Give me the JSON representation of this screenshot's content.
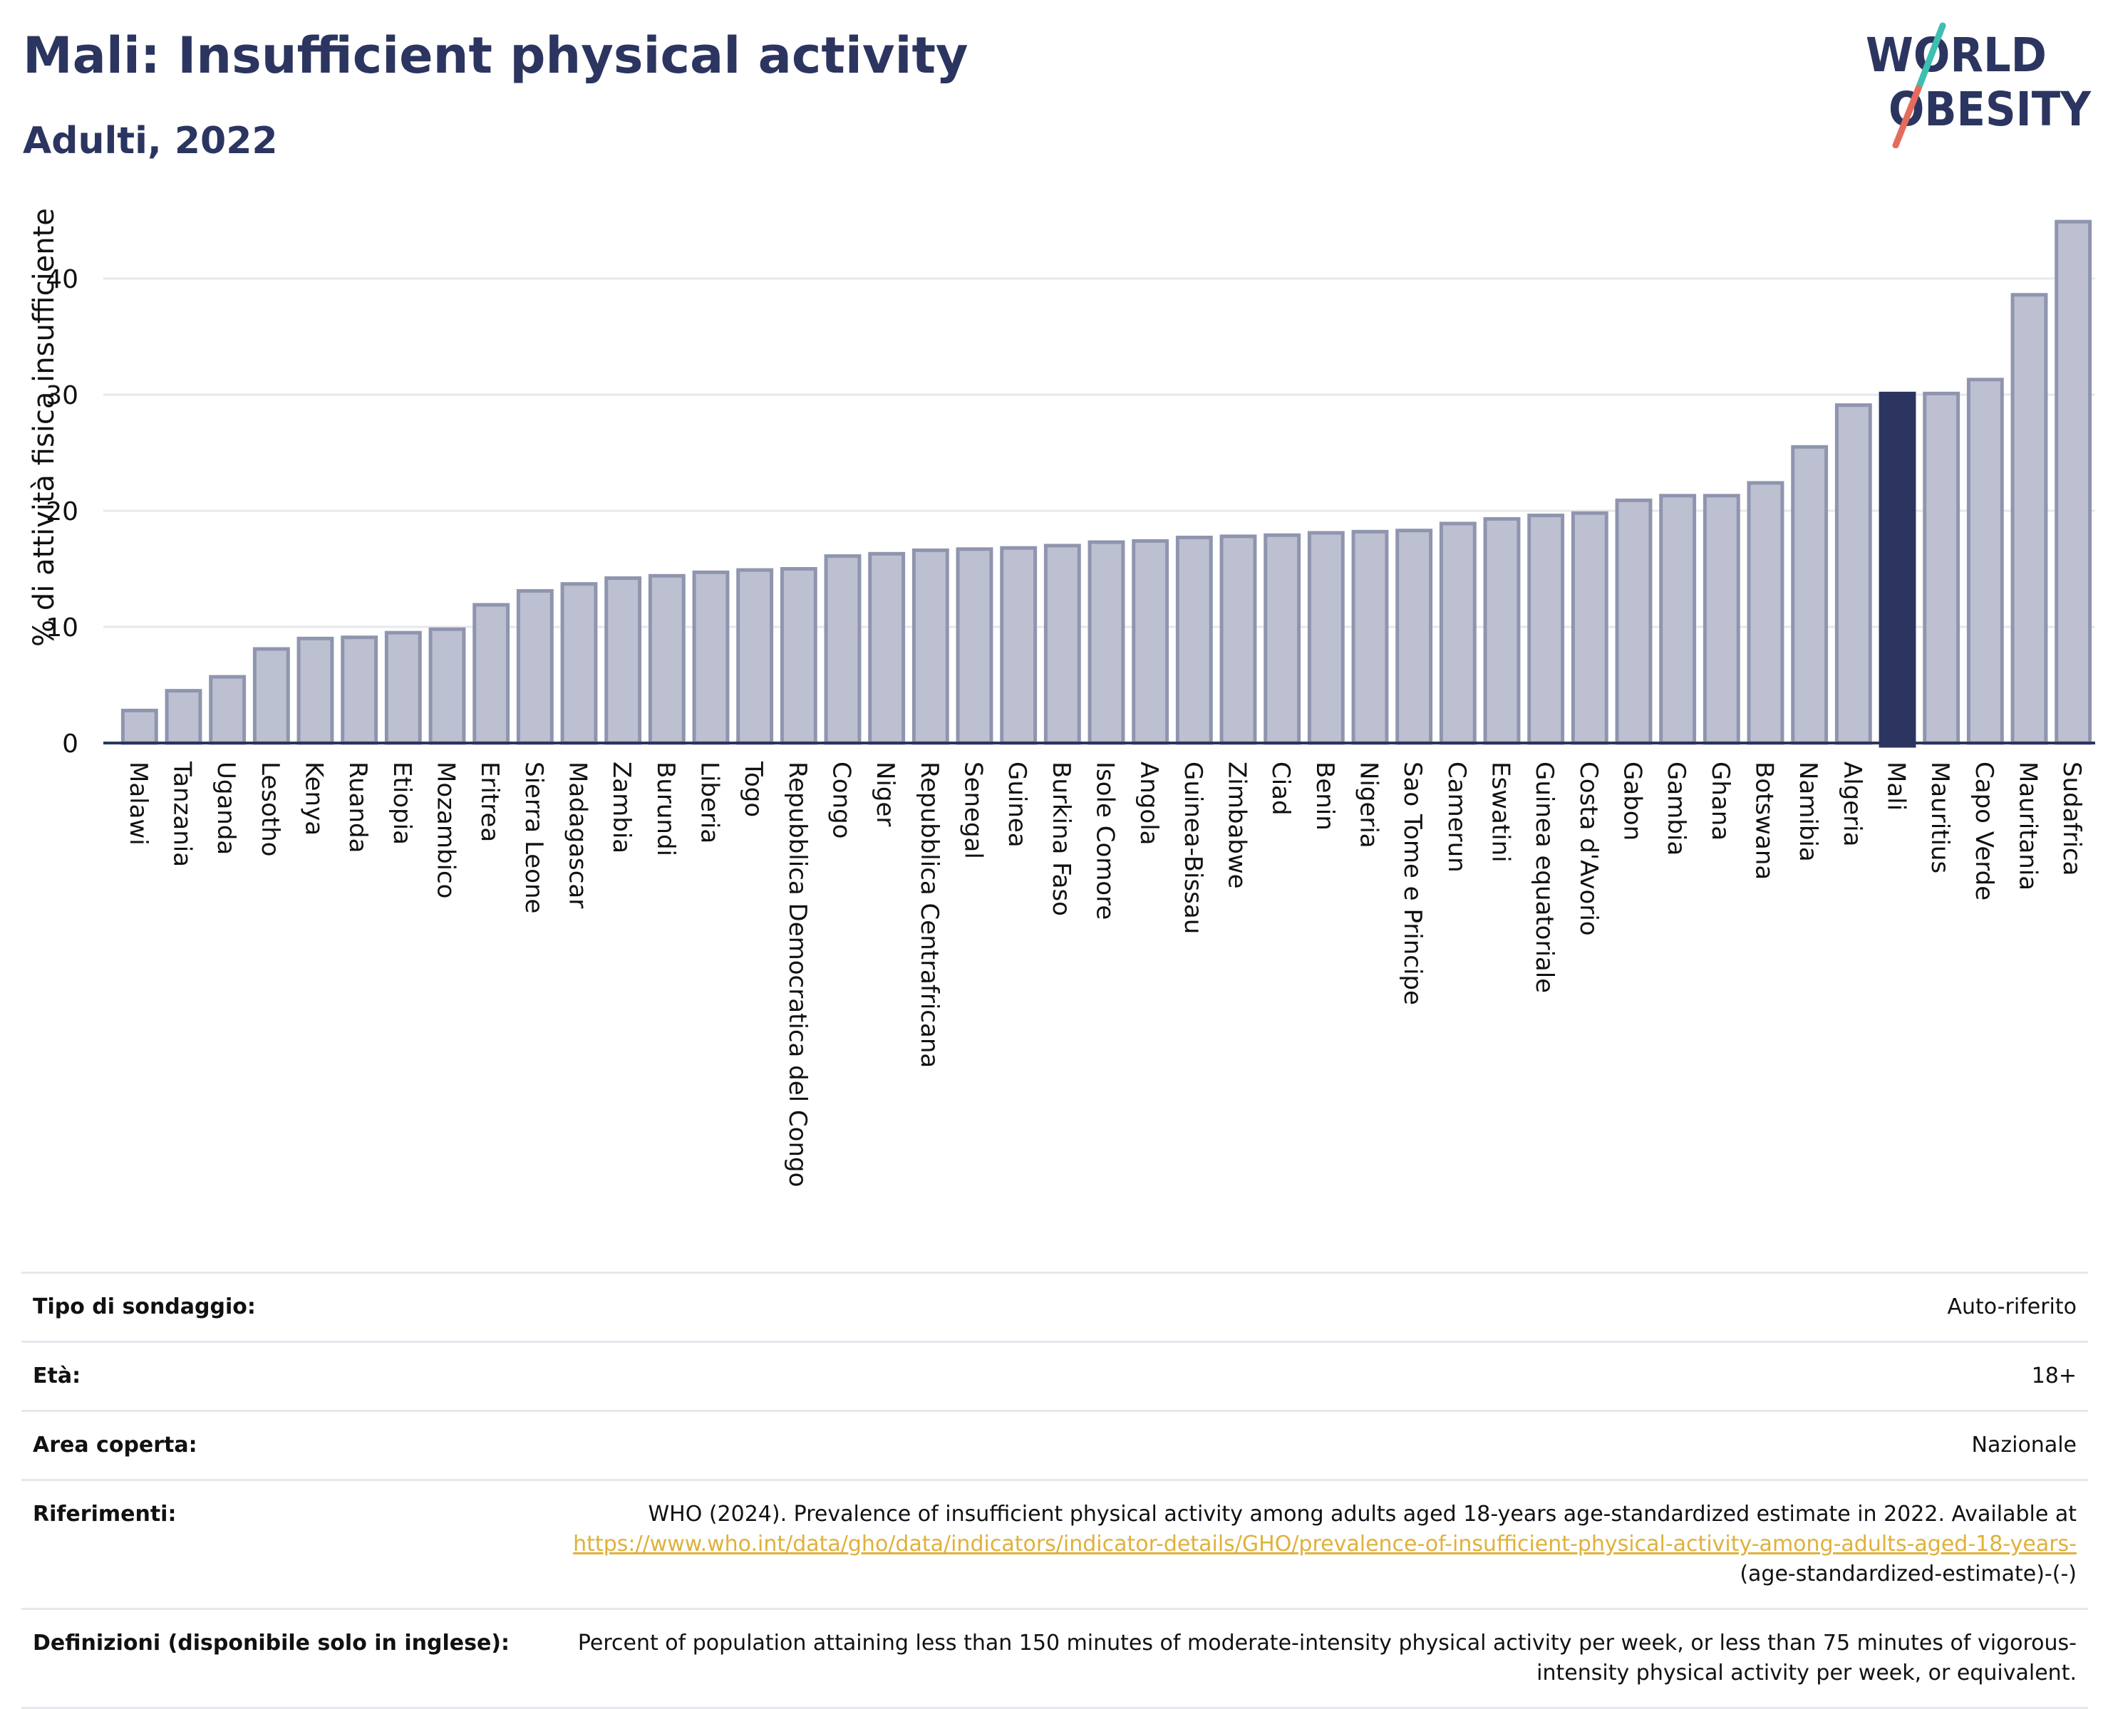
{
  "header": {
    "title": "Mali: Insufficient physical activity",
    "subtitle": "Adulti, 2022"
  },
  "logo": {
    "line1": "WORLD",
    "line2": "OBESITY",
    "colors": {
      "text": "#2b3560",
      "slash_teal": "#3fbfb2",
      "slash_coral": "#e56b5d"
    }
  },
  "colors": {
    "bar_fill": "#bcc0d0",
    "bar_stroke": "#8f95ae",
    "highlight": "#2b3560",
    "grid": "#e6e8ee",
    "axis": "#2b3560"
  },
  "chart_data": {
    "type": "bar",
    "title": "Mali: Insufficient physical activity",
    "subtitle": "Adulti, 2022",
    "xlabel": "",
    "ylabel": "% di attività fisica insufficiente",
    "ylim": [
      0,
      45
    ],
    "yticks": [
      0,
      10,
      20,
      30,
      40
    ],
    "grid": true,
    "highlight": "Mali",
    "categories": [
      "Malawi",
      "Tanzania",
      "Uganda",
      "Lesotho",
      "Kenya",
      "Ruanda",
      "Etiopia",
      "Mozambico",
      "Eritrea",
      "Sierra Leone",
      "Madagascar",
      "Zambia",
      "Burundi",
      "Liberia",
      "Togo",
      "Repubblica Democratica del Congo",
      "Congo",
      "Niger",
      "Repubblica Centrafricana",
      "Senegal",
      "Guinea",
      "Burkina Faso",
      "Isole Comore",
      "Angola",
      "Guinea-Bissau",
      "Zimbabwe",
      "Ciad",
      "Benin",
      "Nigeria",
      "Sao Tome e Principe",
      "Camerun",
      "Eswatini",
      "Guinea equatoriale",
      "Costa d'Avorio",
      "Gabon",
      "Gambia",
      "Ghana",
      "Botswana",
      "Namibia",
      "Algeria",
      "Mali",
      "Mauritius",
      "Capo Verde",
      "Mauritania",
      "Sudafrica"
    ],
    "values": [
      2.8,
      4.5,
      5.7,
      8.1,
      9.0,
      9.1,
      9.5,
      9.8,
      11.9,
      13.1,
      13.7,
      14.2,
      14.4,
      14.7,
      14.9,
      15.0,
      16.1,
      16.3,
      16.6,
      16.7,
      16.8,
      17.0,
      17.3,
      17.4,
      17.7,
      17.8,
      17.9,
      18.1,
      18.2,
      18.3,
      18.9,
      19.3,
      19.6,
      19.8,
      20.9,
      21.3,
      21.3,
      22.4,
      25.5,
      29.1,
      30.1,
      30.1,
      31.3,
      38.6,
      44.9
    ]
  },
  "info": {
    "survey_label": "Tipo di sondaggio:",
    "survey_value": "Auto-riferito",
    "age_label": "Età:",
    "age_value": "18+",
    "area_label": "Area coperta:",
    "area_value": "Nazionale",
    "ref_label": "Riferimenti:",
    "ref_text": "WHO (2024). Prevalence of insufficient physical activity among adults aged 18-years age-standardized estimate in 2022. Available at",
    "ref_link": "https://www.who.int/data/gho/data/indicators/indicator-details/GHO/prevalence-of-insufficient-physical-activity-among-adults-aged-18-years-",
    "ref_tail": "(age-standardized-estimate)-(-)",
    "def_label": "Definizioni (disponibile solo in inglese):",
    "def_value": "Percent of population attaining less than 150 minutes of moderate-intensity physical activity per week, or less than 75 minutes of vigorous-intensity physical activity per week, or equivalent."
  }
}
